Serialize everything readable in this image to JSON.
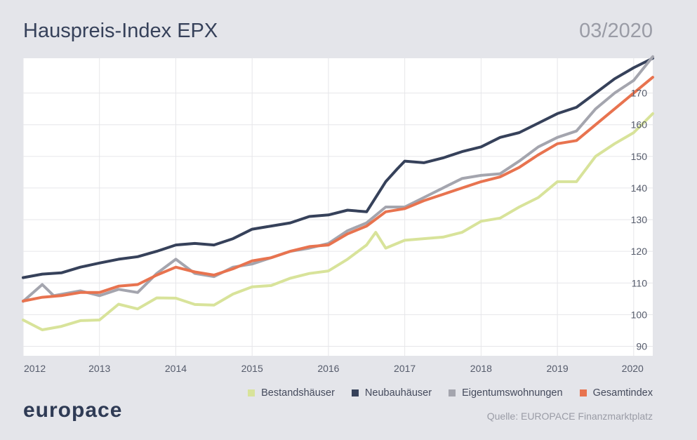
{
  "header": {
    "title": "Hauspreis-Index EPX",
    "date": "03/2020"
  },
  "footer": {
    "logo": "europace",
    "source": "Quelle: EUROPACE Finanzmarktplatz"
  },
  "chart_data": {
    "type": "line",
    "x_ticks": [
      "2012",
      "2013",
      "2014",
      "2015",
      "2016",
      "2017",
      "2018",
      "2019",
      "2020"
    ],
    "y_ticks": [
      90,
      100,
      110,
      120,
      130,
      140,
      150,
      160,
      170
    ],
    "xlim": [
      2012.0,
      2020.25
    ],
    "ylim": [
      87,
      181
    ],
    "grid": true,
    "legend_position": "bottom-right",
    "series": [
      {
        "name": "Bestandshäuser",
        "color": "#d8e39a",
        "points": [
          [
            2012.0,
            98.3
          ],
          [
            2012.25,
            95.2
          ],
          [
            2012.5,
            96.3
          ],
          [
            2012.75,
            98.1
          ],
          [
            2013.0,
            98.3
          ],
          [
            2013.25,
            103.3
          ],
          [
            2013.5,
            101.8
          ],
          [
            2013.75,
            105.3
          ],
          [
            2014.0,
            105.2
          ],
          [
            2014.25,
            103.2
          ],
          [
            2014.5,
            103.0
          ],
          [
            2014.75,
            106.5
          ],
          [
            2015.0,
            108.8
          ],
          [
            2015.25,
            109.2
          ],
          [
            2015.5,
            111.5
          ],
          [
            2015.75,
            113.0
          ],
          [
            2016.0,
            113.8
          ],
          [
            2016.25,
            117.5
          ],
          [
            2016.5,
            122.0
          ],
          [
            2016.62,
            126.0
          ],
          [
            2016.75,
            121.0
          ],
          [
            2017.0,
            123.5
          ],
          [
            2017.25,
            124.0
          ],
          [
            2017.5,
            124.5
          ],
          [
            2017.75,
            126.0
          ],
          [
            2018.0,
            129.5
          ],
          [
            2018.25,
            130.5
          ],
          [
            2018.5,
            134.0
          ],
          [
            2018.75,
            137.0
          ],
          [
            2019.0,
            142.0
          ],
          [
            2019.25,
            142.0
          ],
          [
            2019.5,
            150.0
          ],
          [
            2019.75,
            154.0
          ],
          [
            2020.0,
            157.5
          ],
          [
            2020.25,
            163.5
          ]
        ]
      },
      {
        "name": "Neubauhäuser",
        "color": "#36415a",
        "points": [
          [
            2012.0,
            111.7
          ],
          [
            2012.25,
            112.8
          ],
          [
            2012.5,
            113.2
          ],
          [
            2012.75,
            115.0
          ],
          [
            2013.0,
            116.3
          ],
          [
            2013.25,
            117.5
          ],
          [
            2013.5,
            118.3
          ],
          [
            2013.75,
            120.0
          ],
          [
            2014.0,
            122.0
          ],
          [
            2014.25,
            122.5
          ],
          [
            2014.5,
            122.0
          ],
          [
            2014.75,
            124.0
          ],
          [
            2015.0,
            127.0
          ],
          [
            2015.25,
            128.0
          ],
          [
            2015.5,
            129.0
          ],
          [
            2015.75,
            131.0
          ],
          [
            2016.0,
            131.5
          ],
          [
            2016.25,
            133.0
          ],
          [
            2016.5,
            132.5
          ],
          [
            2016.75,
            142.0
          ],
          [
            2016.9,
            146.0
          ],
          [
            2017.0,
            148.5
          ],
          [
            2017.25,
            148.0
          ],
          [
            2017.5,
            149.5
          ],
          [
            2017.75,
            151.5
          ],
          [
            2018.0,
            153.0
          ],
          [
            2018.25,
            156.0
          ],
          [
            2018.5,
            157.5
          ],
          [
            2018.75,
            160.5
          ],
          [
            2019.0,
            163.5
          ],
          [
            2019.25,
            165.5
          ],
          [
            2019.5,
            170.0
          ],
          [
            2019.75,
            174.5
          ],
          [
            2020.0,
            178.0
          ],
          [
            2020.25,
            181.0
          ]
        ]
      },
      {
        "name": "Eigentumswohnungen",
        "color": "#a4a5ae",
        "points": [
          [
            2012.0,
            104.2
          ],
          [
            2012.25,
            109.5
          ],
          [
            2012.4,
            106.0
          ],
          [
            2012.75,
            107.5
          ],
          [
            2013.0,
            106.0
          ],
          [
            2013.25,
            108.0
          ],
          [
            2013.5,
            107.0
          ],
          [
            2013.75,
            113.0
          ],
          [
            2014.0,
            117.5
          ],
          [
            2014.25,
            113.0
          ],
          [
            2014.5,
            112.0
          ],
          [
            2014.75,
            115.0
          ],
          [
            2015.0,
            116.0
          ],
          [
            2015.25,
            118.0
          ],
          [
            2015.5,
            120.0
          ],
          [
            2015.75,
            121.0
          ],
          [
            2016.0,
            122.5
          ],
          [
            2016.25,
            126.5
          ],
          [
            2016.5,
            129.0
          ],
          [
            2016.75,
            134.0
          ],
          [
            2017.0,
            134.0
          ],
          [
            2017.25,
            137.0
          ],
          [
            2017.5,
            140.0
          ],
          [
            2017.75,
            143.0
          ],
          [
            2018.0,
            144.0
          ],
          [
            2018.25,
            144.5
          ],
          [
            2018.5,
            148.5
          ],
          [
            2018.75,
            153.0
          ],
          [
            2019.0,
            156.0
          ],
          [
            2019.25,
            158.0
          ],
          [
            2019.5,
            165.0
          ],
          [
            2019.75,
            170.0
          ],
          [
            2020.0,
            174.0
          ],
          [
            2020.25,
            181.5
          ]
        ]
      },
      {
        "name": "Gesamtindex",
        "color": "#e8734f",
        "points": [
          [
            2012.0,
            104.3
          ],
          [
            2012.25,
            105.5
          ],
          [
            2012.5,
            106.0
          ],
          [
            2012.75,
            107.0
          ],
          [
            2013.0,
            107.0
          ],
          [
            2013.25,
            109.0
          ],
          [
            2013.5,
            109.5
          ],
          [
            2013.75,
            112.5
          ],
          [
            2014.0,
            115.0
          ],
          [
            2014.25,
            113.5
          ],
          [
            2014.5,
            112.5
          ],
          [
            2014.75,
            114.5
          ],
          [
            2015.0,
            117.0
          ],
          [
            2015.25,
            118.0
          ],
          [
            2015.5,
            120.0
          ],
          [
            2015.75,
            121.5
          ],
          [
            2016.0,
            122.0
          ],
          [
            2016.25,
            125.5
          ],
          [
            2016.5,
            128.0
          ],
          [
            2016.75,
            132.5
          ],
          [
            2017.0,
            133.5
          ],
          [
            2017.25,
            136.0
          ],
          [
            2017.5,
            138.0
          ],
          [
            2017.75,
            140.0
          ],
          [
            2018.0,
            142.0
          ],
          [
            2018.25,
            143.5
          ],
          [
            2018.5,
            146.5
          ],
          [
            2018.75,
            150.5
          ],
          [
            2019.0,
            154.0
          ],
          [
            2019.25,
            155.0
          ],
          [
            2019.5,
            160.0
          ],
          [
            2019.75,
            165.0
          ],
          [
            2020.0,
            170.0
          ],
          [
            2020.25,
            175.0
          ]
        ]
      }
    ]
  }
}
